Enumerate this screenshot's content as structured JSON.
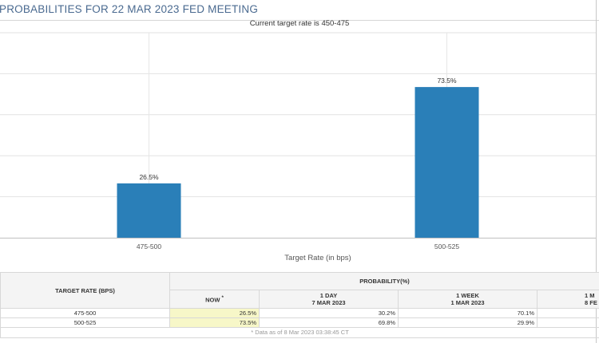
{
  "title": "PROBABILITIES FOR 22 MAR 2023 FED MEETING",
  "subtitle": "Current target rate is 450-475",
  "colors": {
    "bar": "#2a7fb8",
    "now_highlight": "#f7f7c8",
    "title": "#4a6a90"
  },
  "chart_data": {
    "type": "bar",
    "title": "PROBABILITIES FOR 22 MAR 2023 FED MEETING",
    "subtitle": "Current target rate is 450-475",
    "categories": [
      "475-500",
      "500-525"
    ],
    "values": [
      26.5,
      73.5
    ],
    "data_labels": [
      "26.5%",
      "73.5%"
    ],
    "xlabel": "Target Rate (in bps)",
    "ylabel": "",
    "ylim": [
      0,
      100
    ],
    "y_gridlines": [
      20,
      40,
      60,
      80,
      100
    ],
    "grid": true,
    "legend": "none"
  },
  "table": {
    "col_target": "TARGET RATE (BPS)",
    "col_probability": "PROBABILITY(%)",
    "col_now": "NOW",
    "now_marker": "*",
    "col_1day": "1 DAY",
    "col_1day_date": "7 MAR 2023",
    "col_1week": "1 WEEK",
    "col_1week_date": "1 MAR 2023",
    "col_1month": "1 M",
    "col_1month_date": "8 FE",
    "rows": [
      {
        "rate": "475-500",
        "now": "26.5%",
        "day1": "30.2%",
        "week1": "70.1%"
      },
      {
        "rate": "500-525",
        "now": "73.5%",
        "day1": "69.8%",
        "week1": "29.9%"
      }
    ],
    "footnote": "* Data as of 8 Mar 2023 03:38:45 CT"
  }
}
